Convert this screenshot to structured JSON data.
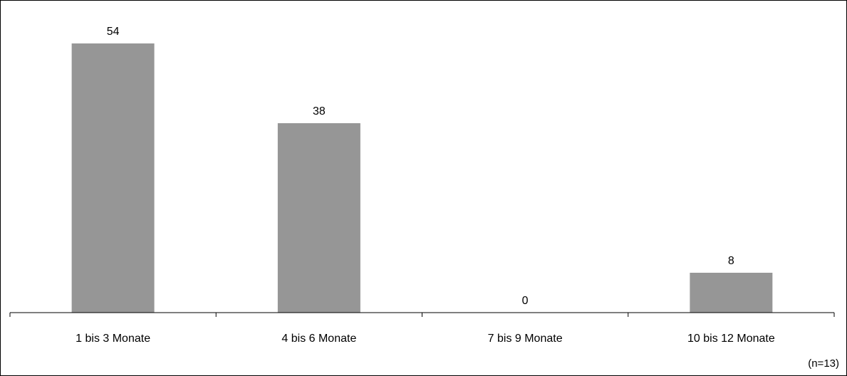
{
  "chart_data": {
    "type": "bar",
    "title": "",
    "xlabel": "",
    "ylabel": "",
    "categories": [
      "1 bis 3 Monate",
      "4 bis 6 Monate",
      "7 bis 9 Monate",
      "10 bis 12 Monate"
    ],
    "values": [
      54,
      38,
      0,
      8
    ],
    "data_labels": [
      "54",
      "38",
      "0",
      "8"
    ],
    "ylim": [
      0,
      60
    ],
    "grid": false,
    "legend": "none",
    "bar_color": "#969696",
    "axis_color": "#000000"
  },
  "footnote": "(n=13)"
}
